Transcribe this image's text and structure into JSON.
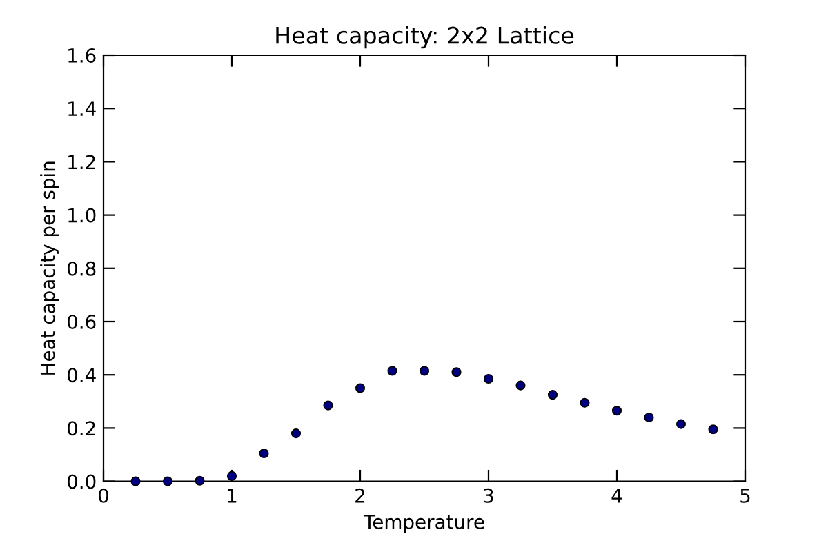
{
  "chart_data": {
    "type": "scatter",
    "title": "Heat capacity: 2x2 Lattice",
    "xlabel": "Temperature",
    "ylabel": "Heat capacity per spin",
    "x": [
      0.25,
      0.5,
      0.75,
      1,
      1.25,
      1.5,
      1.75,
      2,
      2.25,
      2.5,
      2.75,
      3,
      3.25,
      3.5,
      3.75,
      4,
      4.25,
      4.5,
      4.75
    ],
    "series": [
      {
        "color": "#000080",
        "values": [
          0,
          0,
          0.002,
          0.02,
          0.105,
          0.18,
          0.285,
          0.35,
          0.415,
          0.415,
          0.41,
          0.385,
          0.36,
          0.325,
          0.295,
          0.265,
          0.24,
          0.215,
          0.195
        ]
      }
    ],
    "xlim": [
      0,
      5
    ],
    "ylim": [
      0,
      1.6
    ],
    "xticks": [
      0,
      1,
      2,
      3,
      4,
      5
    ],
    "yticks": [
      {
        "value": 0,
        "label": "0.0"
      },
      {
        "value": 0.2,
        "label": "0.2"
      },
      {
        "value": 0.4,
        "label": "0.4"
      },
      {
        "value": 0.6,
        "label": "0.6"
      },
      {
        "value": 0.8,
        "label": "0.8"
      },
      {
        "value": 1,
        "label": "1.0"
      },
      {
        "value": 1.2,
        "label": "1.2"
      },
      {
        "value": 1.4,
        "label": "1.4"
      },
      {
        "value": 1.6,
        "label": "1.6"
      }
    ],
    "grid": false,
    "marker": "circle"
  }
}
